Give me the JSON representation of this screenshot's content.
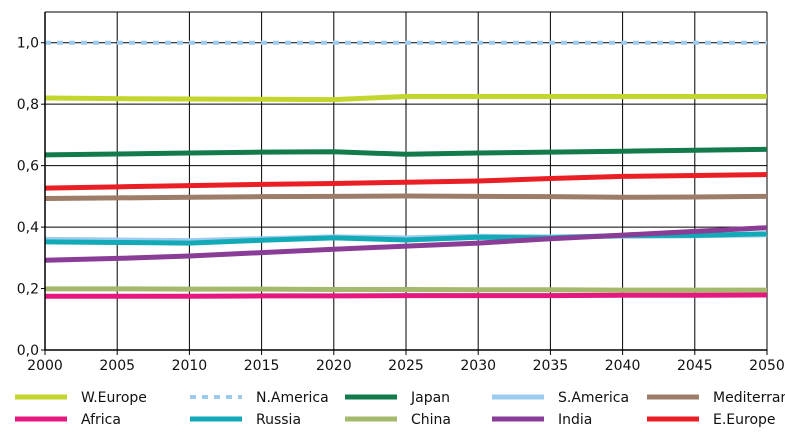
{
  "chart_data": {
    "type": "line",
    "x": [
      2000,
      2005,
      2010,
      2015,
      2020,
      2025,
      2030,
      2035,
      2040,
      2045,
      2050
    ],
    "xlim": [
      2000,
      2050
    ],
    "ylim": [
      0,
      1.1
    ],
    "yticks": [
      "0,0",
      "0,2",
      "0,4",
      "0,6",
      "0,8",
      "1,0"
    ],
    "xticks": [
      "2000",
      "2005",
      "2010",
      "2015",
      "2020",
      "2025",
      "2030",
      "2035",
      "2040",
      "2045",
      "2050"
    ],
    "grid": true,
    "legend_position": "bottom",
    "series": [
      {
        "name": "W.Europe",
        "color": "#c2d62e",
        "dash": false,
        "values": [
          0.82,
          0.818,
          0.817,
          0.816,
          0.815,
          0.825,
          0.825,
          0.825,
          0.825,
          0.825,
          0.825
        ]
      },
      {
        "name": "N.America",
        "color": "#9bcbee",
        "dash": true,
        "values": [
          1.0,
          1.0,
          1.0,
          1.0,
          1.0,
          1.0,
          1.0,
          1.0,
          1.0,
          1.0,
          1.0
        ]
      },
      {
        "name": "Japan",
        "color": "#137a4b",
        "dash": false,
        "values": [
          0.635,
          0.638,
          0.641,
          0.644,
          0.645,
          0.637,
          0.641,
          0.644,
          0.647,
          0.65,
          0.653
        ]
      },
      {
        "name": "S.America",
        "color": "#9bcbee",
        "dash": false,
        "values": [
          0.36,
          0.358,
          0.356,
          0.362,
          0.368,
          0.365,
          0.37,
          0.368,
          0.37,
          0.372,
          0.375
        ]
      },
      {
        "name": "Mediterranean",
        "color": "#9d7c68",
        "dash": false,
        "values": [
          0.493,
          0.495,
          0.497,
          0.499,
          0.5,
          0.501,
          0.5,
          0.499,
          0.497,
          0.498,
          0.5
        ]
      },
      {
        "name": "Africa",
        "color": "#e5187f",
        "dash": false,
        "values": [
          0.175,
          0.175,
          0.175,
          0.176,
          0.176,
          0.177,
          0.177,
          0.177,
          0.178,
          0.178,
          0.179
        ]
      },
      {
        "name": "Russia",
        "color": "#12aab6",
        "dash": false,
        "values": [
          0.352,
          0.35,
          0.348,
          0.357,
          0.365,
          0.358,
          0.367,
          0.365,
          0.373,
          0.373,
          0.378
        ]
      },
      {
        "name": "China",
        "color": "#a4b96b",
        "dash": false,
        "values": [
          0.199,
          0.199,
          0.198,
          0.198,
          0.197,
          0.197,
          0.196,
          0.196,
          0.195,
          0.195,
          0.195
        ]
      },
      {
        "name": "India",
        "color": "#8a3d97",
        "dash": false,
        "values": [
          0.292,
          0.298,
          0.306,
          0.317,
          0.328,
          0.338,
          0.348,
          0.362,
          0.374,
          0.386,
          0.398
        ]
      },
      {
        "name": "E.Europe",
        "color": "#ea1f25",
        "dash": false,
        "values": [
          0.527,
          0.531,
          0.535,
          0.539,
          0.542,
          0.546,
          0.55,
          0.558,
          0.565,
          0.568,
          0.571
        ]
      }
    ],
    "draw_order": [
      "S.America",
      "N.America",
      "China",
      "Mediterranean",
      "Russia",
      "India",
      "Africa",
      "E.Europe",
      "Japan",
      "W.Europe"
    ]
  }
}
